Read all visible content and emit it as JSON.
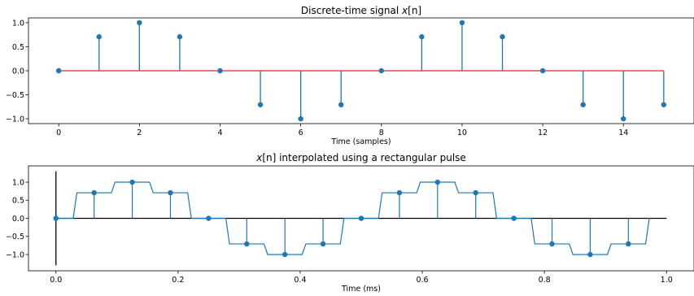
{
  "chart_data": [
    {
      "type": "stem",
      "title_prefix": "Discrete-time signal ",
      "title_math": "x",
      "title_suffix": "[n]",
      "xlabel": "Time (samples)",
      "ylabel": "",
      "xlim": [
        -0.75,
        15.75
      ],
      "ylim": [
        -1.1,
        1.1
      ],
      "xticks": [
        0,
        2,
        4,
        6,
        8,
        10,
        12,
        14
      ],
      "xtick_labels": [
        "0",
        "2",
        "4",
        "6",
        "8",
        "10",
        "12",
        "14"
      ],
      "yticks": [
        1.0,
        0.5,
        0.0,
        -0.5,
        -1.0
      ],
      "ytick_labels": [
        "1.0",
        "0.5",
        "0.0",
        "−0.5",
        "−1.0"
      ],
      "x": [
        0,
        1,
        2,
        3,
        4,
        5,
        6,
        7,
        8,
        9,
        10,
        11,
        12,
        13,
        14,
        15
      ],
      "values": [
        0,
        0.707,
        1,
        0.707,
        0,
        -0.707,
        -1,
        -0.707,
        0,
        0.707,
        1,
        0.707,
        0,
        -0.707,
        -1,
        -0.707
      ],
      "baseline": 0,
      "stem_color": "#1f77b4",
      "baseline_color": "#d62728",
      "grid": false
    },
    {
      "type": "line+stem",
      "title_math": "x",
      "title_suffix": "[n] interpolated using a rectangular pulse",
      "xlabel": "Time (ms)",
      "ylabel": "",
      "xlim": [
        -0.045,
        1.045
      ],
      "ylim": [
        -1.45,
        1.45
      ],
      "xticks": [
        0.0,
        0.2,
        0.4,
        0.6,
        0.8,
        1.0
      ],
      "xtick_labels": [
        "0.0",
        "0.2",
        "0.4",
        "0.6",
        "0.8",
        "1.0"
      ],
      "yticks": [
        1.0,
        0.5,
        0.0,
        -0.5,
        -1.0
      ],
      "ytick_labels": [
        "1.0",
        "0.5",
        "0.0",
        "−0.5",
        "−1.0"
      ],
      "sample_times": [
        0,
        0.0625,
        0.125,
        0.1875,
        0.25,
        0.3125,
        0.375,
        0.4375,
        0.5,
        0.5625,
        0.625,
        0.6875,
        0.75,
        0.8125,
        0.875,
        0.9375
      ],
      "sample_values": [
        0,
        0.707,
        1,
        0.707,
        0,
        -0.707,
        -1,
        -0.707,
        0,
        0.707,
        1,
        0.707,
        0,
        -0.707,
        -1,
        -0.707
      ],
      "pulse_width": 0.0625,
      "pulse_rise": 0.003,
      "interp_end": 0.97,
      "axis_lines": {
        "horizontal": [
          0,
          1.0
        ],
        "vertical": [
          -1.3,
          1.3
        ]
      },
      "line_color": "#1f77b4",
      "axis_line_color": "#000000",
      "grid": false
    }
  ]
}
